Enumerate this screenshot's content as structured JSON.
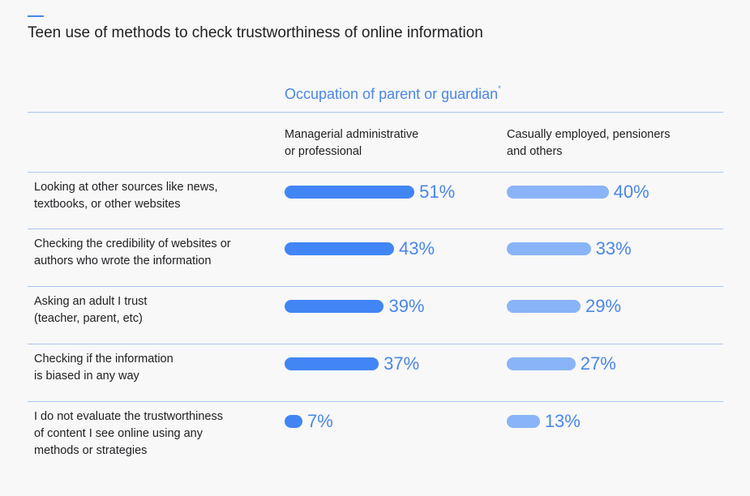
{
  "title": "Teen use of methods to check trustworthiness of online information",
  "group_title": "Occupation of parent or guardian",
  "group_title_marker": "*",
  "colors": {
    "series_a": "#4285f4",
    "series_b": "#8ab4f8",
    "accent": "#4a86e8"
  },
  "chart_data": {
    "type": "bar",
    "orientation": "horizontal",
    "title": "Teen use of methods to check trustworthiness of online information",
    "group_label": "Occupation of parent or guardian*",
    "categories": [
      "Looking at other sources like news, textbooks, or other websites",
      "Checking the credibility of websites or authors who wrote the information",
      "Asking an adult I trust (teacher, parent, etc)",
      "Checking if the information is biased in any way",
      "I do not evaluate the trustworthiness of content I see online using any methods or strategies"
    ],
    "category_lines": [
      [
        "Looking at other sources like news,",
        "textbooks, or other websites"
      ],
      [
        "Checking the credibility of websites or",
        "authors who wrote the information"
      ],
      [
        "Asking an adult I trust",
        "(teacher, parent, etc)"
      ],
      [
        "Checking if the information",
        "is biased in any way"
      ],
      [
        "I do not evaluate the trustworthiness",
        "of content I see online using any",
        "methods or strategies"
      ]
    ],
    "series": [
      {
        "name": "Managerial administrative or professional",
        "name_lines": [
          "Managerial administrative",
          "or professional"
        ],
        "values": [
          51,
          43,
          39,
          37,
          7
        ],
        "labels": [
          "51%",
          "43%",
          "39%",
          "37%",
          "7%"
        ]
      },
      {
        "name": "Casually employed, pensioners and others",
        "name_lines": [
          "Casually employed, pensioners",
          "and others"
        ],
        "values": [
          40,
          33,
          29,
          27,
          13
        ],
        "labels": [
          "40%",
          "33%",
          "29%",
          "27%",
          "13%"
        ]
      }
    ],
    "unit": "%",
    "xlim": [
      0,
      100
    ]
  }
}
